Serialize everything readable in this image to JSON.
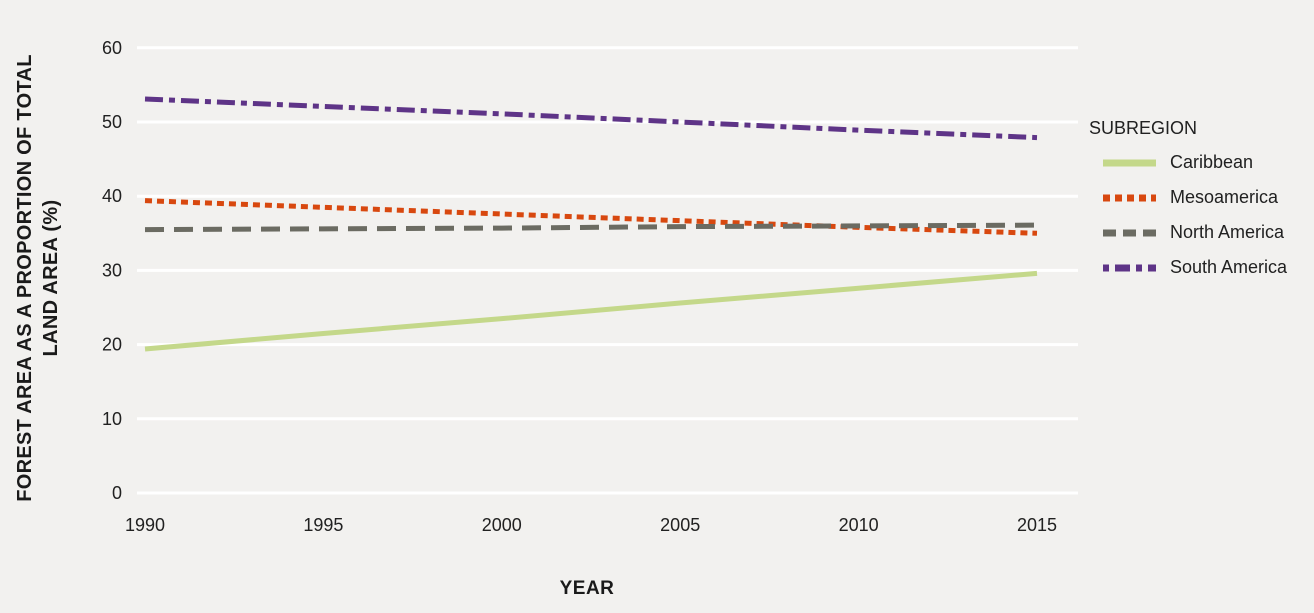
{
  "colors": {
    "background": "#f2f1ef",
    "gridline": "#ffffff",
    "text": "#212121"
  },
  "y_axis": {
    "title_line1": "FOREST AREA AS A PROPORTION OF TOTAL",
    "title_line2": "LAND AREA (%)",
    "ticks": [
      0,
      10,
      20,
      30,
      40,
      50,
      60
    ]
  },
  "x_axis": {
    "title": "YEAR",
    "ticks": [
      1990,
      1995,
      2000,
      2005,
      2010,
      2015
    ]
  },
  "legend": {
    "title": "SUBREGION",
    "position": "right"
  },
  "chart_data": {
    "type": "line",
    "title": "",
    "xlabel": "YEAR",
    "ylabel": "FOREST AREA AS A PROPORTION OF TOTAL LAND AREA (%)",
    "x": [
      1990,
      1995,
      2000,
      2005,
      2010,
      2015
    ],
    "xlim": [
      1990,
      2015
    ],
    "ylim": [
      0,
      60
    ],
    "grid": true,
    "legend_position": "right",
    "series": [
      {
        "name": "Caribbean",
        "color": "#c4d88a",
        "style": "solid",
        "values": [
          19.4,
          21.5,
          23.5,
          25.6,
          27.6,
          29.6
        ]
      },
      {
        "name": "Mesoamerica",
        "color": "#d8480f",
        "style": "dotted",
        "values": [
          39.4,
          38.5,
          37.6,
          36.7,
          35.8,
          35.0
        ]
      },
      {
        "name": "North America",
        "color": "#6b6b62",
        "style": "dashed",
        "values": [
          35.5,
          35.6,
          35.7,
          35.9,
          36.0,
          36.1
        ]
      },
      {
        "name": "South America",
        "color": "#5e3487",
        "style": "dashdot",
        "values": [
          53.1,
          52.1,
          51.1,
          50.0,
          48.9,
          47.9
        ]
      }
    ]
  }
}
